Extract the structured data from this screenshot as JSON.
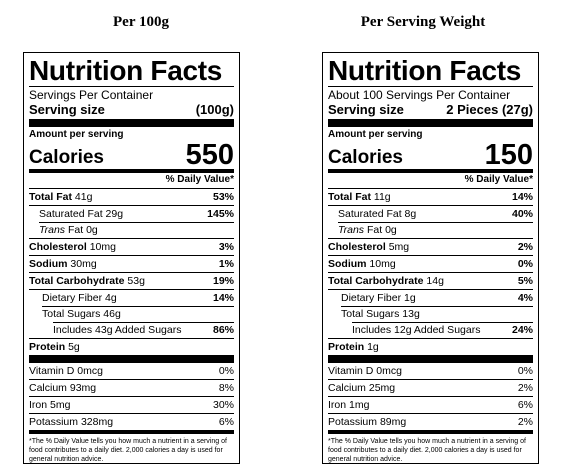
{
  "columns": [
    {
      "heading": "Per 100g",
      "label": {
        "title": "Nutrition Facts",
        "servings_per_container": "Servings Per Container",
        "serving_size_label": "Serving size",
        "serving_size_value": "(100g)",
        "amount_per_serving": "Amount per serving",
        "calories_label": "Calories",
        "calories_value": "550",
        "dv_header": "% Daily Value*",
        "total_fat": {
          "label": "Total Fat",
          "amount": "41g",
          "dv": "53%"
        },
        "saturated_fat": {
          "label": "Saturated Fat",
          "amount": "29g",
          "dv": "145%"
        },
        "trans_fat": {
          "label_italic": "Trans",
          "label": "Fat",
          "amount": "0g"
        },
        "cholesterol": {
          "label": "Cholesterol",
          "amount": "10mg",
          "dv": "3%"
        },
        "sodium": {
          "label": "Sodium",
          "amount": "30mg",
          "dv": "1%"
        },
        "total_carb": {
          "label": "Total Carbohydrate",
          "amount": "53g",
          "dv": "19%"
        },
        "dietary_fiber": {
          "label": "Dietary Fiber",
          "amount": "4g",
          "dv": "14%"
        },
        "total_sugars": {
          "label": "Total Sugars",
          "amount": "46g"
        },
        "added_sugars": {
          "prefix": "Includes",
          "amount": "43g",
          "label": "Added Sugars",
          "dv": "86%"
        },
        "protein": {
          "label": "Protein",
          "amount": "5g"
        },
        "vitamin_d": {
          "label": "Vitamin D",
          "amount": "0mcg",
          "dv": "0%"
        },
        "calcium": {
          "label": "Calcium",
          "amount": "93mg",
          "dv": "8%"
        },
        "iron": {
          "label": "Iron",
          "amount": "5mg",
          "dv": "30%"
        },
        "potassium": {
          "label": "Potassium",
          "amount": "328mg",
          "dv": "6%"
        },
        "footnote": "*The % Daily Value tells you how much a nutrient in a serving of food contributes to a daily diet. 2,000 calories a day is used for general nutrition advice."
      }
    },
    {
      "heading": "Per Serving Weight",
      "label": {
        "title": "Nutrition Facts",
        "servings_per_container": "About 100 Servings Per Container",
        "serving_size_label": "Serving size",
        "serving_size_value": "2 Pieces (27g)",
        "amount_per_serving": "Amount per serving",
        "calories_label": "Calories",
        "calories_value": "150",
        "dv_header": "% Daily Value*",
        "total_fat": {
          "label": "Total Fat",
          "amount": "11g",
          "dv": "14%"
        },
        "saturated_fat": {
          "label": "Saturated Fat",
          "amount": "8g",
          "dv": "40%"
        },
        "trans_fat": {
          "label_italic": "Trans",
          "label": "Fat",
          "amount": "0g"
        },
        "cholesterol": {
          "label": "Cholesterol",
          "amount": "5mg",
          "dv": "2%"
        },
        "sodium": {
          "label": "Sodium",
          "amount": "10mg",
          "dv": "0%"
        },
        "total_carb": {
          "label": "Total Carbohydrate",
          "amount": "14g",
          "dv": "5%"
        },
        "dietary_fiber": {
          "label": "Dietary Fiber",
          "amount": "1g",
          "dv": "4%"
        },
        "total_sugars": {
          "label": "Total Sugars",
          "amount": "13g"
        },
        "added_sugars": {
          "prefix": "Includes",
          "amount": "12g",
          "label": "Added Sugars",
          "dv": "24%"
        },
        "protein": {
          "label": "Protein",
          "amount": "1g"
        },
        "vitamin_d": {
          "label": "Vitamin D",
          "amount": "0mcg",
          "dv": "0%"
        },
        "calcium": {
          "label": "Calcium",
          "amount": "25mg",
          "dv": "2%"
        },
        "iron": {
          "label": "Iron",
          "amount": "1mg",
          "dv": "6%"
        },
        "potassium": {
          "label": "Potassium",
          "amount": "89mg",
          "dv": "2%"
        },
        "footnote": "*The % Daily Value tells you how much a nutrient in a serving of food contributes to a daily diet. 2,000 calories a day is used for general nutrition advice."
      }
    }
  ]
}
